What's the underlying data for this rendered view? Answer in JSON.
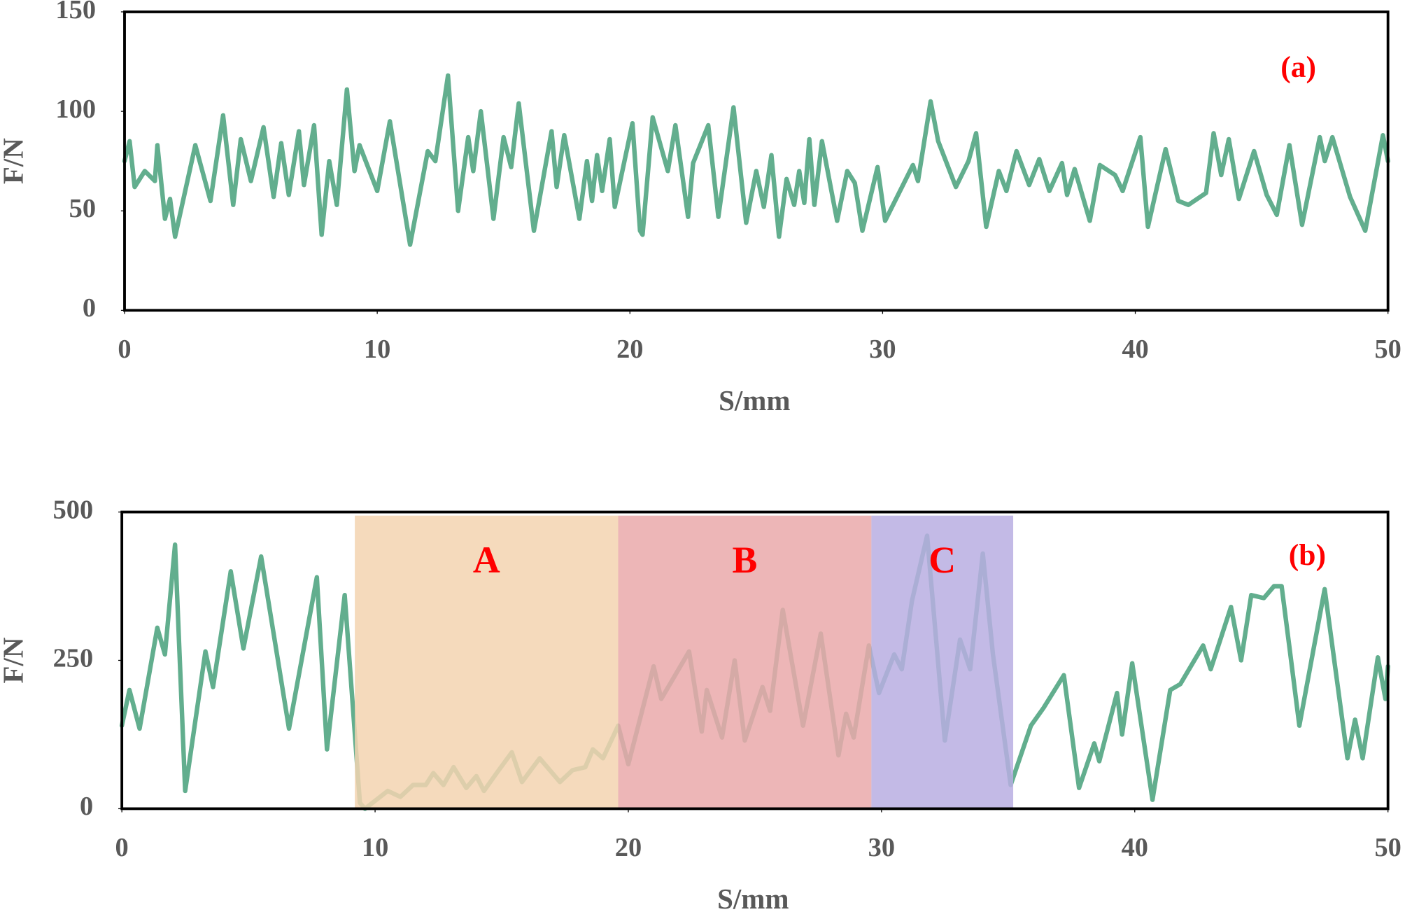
{
  "chart_data": [
    {
      "type": "line",
      "xlabel": "S/mm",
      "ylabel": "F/N",
      "annotation": "(a)",
      "xlim": [
        0,
        50
      ],
      "xticks": [
        0,
        10,
        20,
        30,
        40,
        50
      ],
      "ylim": [
        0,
        150
      ],
      "yticks": [
        0,
        50,
        100,
        150
      ],
      "x": [
        0,
        0.2,
        0.4,
        0.8,
        1.2,
        1.3,
        1.6,
        1.8,
        2,
        2.8,
        3.4,
        3.9,
        4.3,
        4.6,
        5,
        5.5,
        5.9,
        6.2,
        6.5,
        6.9,
        7.1,
        7.5,
        7.8,
        8.1,
        8.4,
        8.8,
        9.1,
        9.3,
        10,
        10.5,
        11.3,
        12,
        12.3,
        12.8,
        13.2,
        13.6,
        13.8,
        14.1,
        14.6,
        15,
        15.3,
        15.6,
        16.2,
        16.9,
        17.1,
        17.4,
        18,
        18.3,
        18.5,
        18.7,
        18.9,
        19.2,
        19.4,
        20.1,
        20.4,
        20.5,
        20.9,
        21.5,
        21.8,
        22.3,
        22.5,
        23.1,
        23.5,
        24.1,
        24.6,
        25,
        25.3,
        25.6,
        25.9,
        26.2,
        26.5,
        26.7,
        26.9,
        27.1,
        27.3,
        27.6,
        28.2,
        28.6,
        28.9,
        29.2,
        29.8,
        30.1,
        31.2,
        31.4,
        31.9,
        32.2,
        32.9,
        33.4,
        33.7,
        34.1,
        34.6,
        34.9,
        35.3,
        35.8,
        36.2,
        36.6,
        37.1,
        37.3,
        37.6,
        38.2,
        38.6,
        39.2,
        39.5,
        40.2,
        40.5,
        41.2,
        41.7,
        42.1,
        42.8,
        43.1,
        43.4,
        43.7,
        44.1,
        44.7,
        45.2,
        45.6,
        46.1,
        46.6,
        47.3,
        47.5,
        47.8,
        48.5,
        49.1,
        49.8,
        50
      ],
      "series": [
        {
          "color": "#62ae8e",
          "values": [
            75,
            85,
            62,
            70,
            65,
            83,
            46,
            56,
            37,
            83,
            55,
            98,
            53,
            86,
            65,
            92,
            57,
            84,
            58,
            90,
            63,
            93,
            38,
            75,
            53,
            111,
            70,
            83,
            60,
            95,
            33,
            80,
            75,
            118,
            50,
            87,
            70,
            100,
            46,
            87,
            72,
            104,
            40,
            90,
            62,
            88,
            46,
            75,
            55,
            78,
            60,
            86,
            52,
            94,
            40,
            38,
            97,
            70,
            93,
            47,
            74,
            93,
            47,
            102,
            44,
            70,
            52,
            78,
            37,
            66,
            53,
            70,
            54,
            86,
            53,
            85,
            45,
            70,
            64,
            40,
            72,
            45,
            73,
            65,
            105,
            85,
            62,
            75,
            89,
            42,
            70,
            60,
            80,
            63,
            76,
            60,
            74,
            58,
            71,
            45,
            73,
            68,
            60,
            87,
            42,
            81,
            55,
            53,
            59,
            89,
            68,
            86,
            56,
            80,
            58,
            48,
            83,
            43,
            87,
            75,
            87,
            57,
            40,
            88,
            75
          ]
        }
      ]
    },
    {
      "type": "line",
      "xlabel": "S/mm",
      "ylabel": "F/N",
      "annotation": "(b)",
      "xlim": [
        0,
        50
      ],
      "xticks": [
        0,
        10,
        20,
        30,
        40,
        50
      ],
      "ylim": [
        0,
        500
      ],
      "yticks": [
        0,
        250,
        500
      ],
      "regions": [
        {
          "label": "A",
          "x": [
            9.2,
            19.6
          ],
          "color": "#f3d3b0"
        },
        {
          "label": "B",
          "x": [
            19.6,
            29.6
          ],
          "color": "#eaa9aa"
        },
        {
          "label": "C",
          "x": [
            29.6,
            35.2
          ],
          "color": "#b9aee2"
        }
      ],
      "x": [
        0,
        0.3,
        0.7,
        1.4,
        1.7,
        2.1,
        2.5,
        3.3,
        3.6,
        4.3,
        4.8,
        5.5,
        6.6,
        7.7,
        8.1,
        8.8,
        9.4,
        9.6,
        10.5,
        11,
        11.5,
        12,
        12.3,
        12.7,
        13.1,
        13.6,
        14,
        14.3,
        14.8,
        15.4,
        15.8,
        16.5,
        17.3,
        17.8,
        18.3,
        18.6,
        19,
        19.6,
        20,
        21,
        21.3,
        22.4,
        22.9,
        23.1,
        23.7,
        24.2,
        24.6,
        25.3,
        25.6,
        26.1,
        26.9,
        27.6,
        28.3,
        28.6,
        28.9,
        29.5,
        29.9,
        30.5,
        30.8,
        31.2,
        31.8,
        32.5,
        33.1,
        33.5,
        34,
        34.4,
        35.1,
        35.9,
        36.4,
        37.2,
        37.8,
        38.4,
        38.6,
        39.3,
        39.5,
        39.9,
        40.7,
        41.4,
        41.8,
        42.7,
        43,
        43.8,
        44.2,
        44.6,
        45.1,
        45.5,
        45.8,
        46.1,
        46.5,
        47.5,
        48.4,
        48.7,
        49,
        49.6,
        49.9,
        50
      ],
      "series": [
        {
          "color": "#62ae8e",
          "values": [
            140,
            200,
            135,
            305,
            260,
            445,
            30,
            265,
            205,
            400,
            270,
            425,
            135,
            390,
            100,
            360,
            10,
            0,
            30,
            20,
            40,
            40,
            60,
            40,
            70,
            35,
            55,
            30,
            60,
            95,
            45,
            85,
            45,
            65,
            70,
            100,
            85,
            140,
            75,
            240,
            185,
            265,
            130,
            200,
            120,
            250,
            115,
            205,
            165,
            335,
            140,
            295,
            90,
            160,
            120,
            275,
            195,
            260,
            235,
            350,
            460,
            115,
            285,
            235,
            430,
            260,
            40,
            140,
            170,
            225,
            35,
            110,
            80,
            195,
            125,
            245,
            15,
            200,
            210,
            275,
            235,
            340,
            250,
            360,
            355,
            375,
            375,
            275,
            140,
            370,
            85,
            150,
            85,
            255,
            185,
            240
          ]
        }
      ]
    }
  ]
}
